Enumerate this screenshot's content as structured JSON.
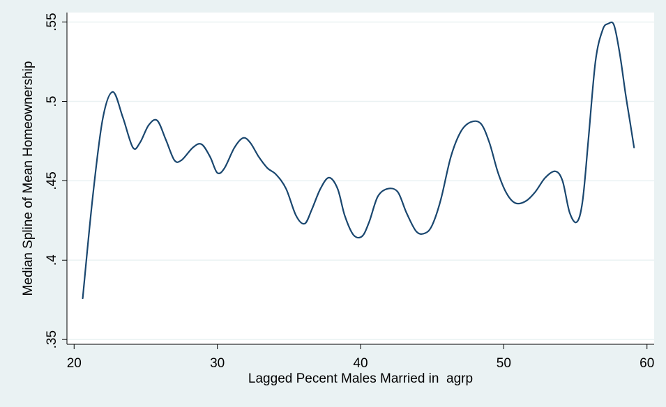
{
  "chart_data": {
    "type": "line",
    "title": "",
    "xlabel": "Lagged Pecent Males Married in  agrp",
    "ylabel": "Median Spline of Mean Homeownership",
    "xlim": [
      19.5,
      60.5
    ],
    "ylim": [
      0.347,
      0.556
    ],
    "x_ticks": [
      20,
      30,
      40,
      50,
      60
    ],
    "x_tick_labels": [
      "20",
      "30",
      "40",
      "50",
      "60"
    ],
    "y_ticks": [
      0.35,
      0.4,
      0.45,
      0.5,
      0.55
    ],
    "y_tick_labels": [
      ".35",
      ".4",
      ".45",
      ".5",
      ".55"
    ],
    "grid": "horizontal",
    "legend": "none",
    "colors": {
      "background": "#eaf2f3",
      "plot_area": "#ffffff",
      "line": "#1a476f",
      "grid": "#eaf2f3",
      "axis": "#000000"
    },
    "series": [
      {
        "x": [
          20.6,
          21.3,
          22.0,
          22.7,
          23.4,
          24.1,
          24.6,
          25.2,
          25.8,
          26.4,
          27.0,
          27.5,
          28.3,
          28.9,
          29.5,
          30.0,
          30.5,
          31.2,
          31.8,
          32.3,
          32.9,
          33.5,
          34.1,
          34.8,
          35.5,
          36.1,
          36.6,
          37.2,
          37.8,
          38.4,
          38.9,
          39.5,
          40.1,
          40.6,
          41.2,
          41.9,
          42.6,
          43.2,
          43.9,
          44.5,
          45.0,
          45.6,
          46.3,
          47.0,
          47.7,
          48.4,
          49.0,
          49.6,
          50.2,
          50.8,
          51.5,
          52.2,
          52.9,
          53.6,
          54.1,
          54.6,
          55.1,
          55.5,
          55.9,
          56.4,
          56.9,
          57.3,
          57.7,
          58.1,
          58.5,
          58.8,
          59.1
        ],
        "y": [
          0.376,
          0.44,
          0.489,
          0.506,
          0.49,
          0.471,
          0.474,
          0.485,
          0.488,
          0.476,
          0.463,
          0.463,
          0.471,
          0.473,
          0.465,
          0.455,
          0.458,
          0.471,
          0.477,
          0.474,
          0.465,
          0.458,
          0.454,
          0.445,
          0.428,
          0.423,
          0.432,
          0.445,
          0.452,
          0.445,
          0.428,
          0.416,
          0.415,
          0.424,
          0.44,
          0.445,
          0.443,
          0.43,
          0.418,
          0.417,
          0.422,
          0.438,
          0.465,
          0.481,
          0.487,
          0.486,
          0.474,
          0.455,
          0.442,
          0.436,
          0.437,
          0.443,
          0.452,
          0.456,
          0.45,
          0.43,
          0.424,
          0.437,
          0.475,
          0.525,
          0.545,
          0.549,
          0.548,
          0.53,
          0.505,
          0.488,
          0.471
        ]
      }
    ]
  }
}
